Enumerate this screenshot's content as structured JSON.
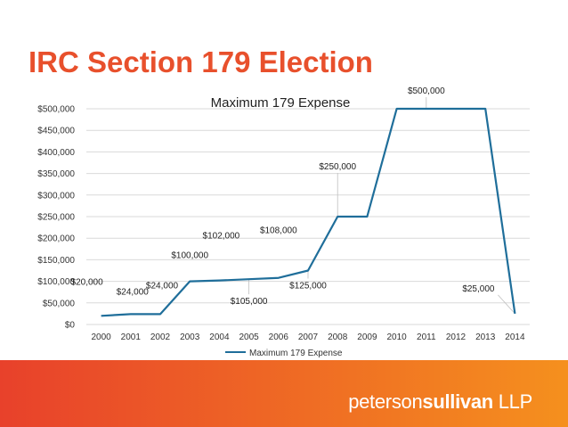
{
  "slide": {
    "title": "IRC Section 179 Election"
  },
  "logo": {
    "part1": "peterson",
    "part2": "sullivan",
    "part3": " LLP"
  },
  "chart_data": {
    "type": "line",
    "title": "Maximum 179 Expense",
    "xlabel": "",
    "ylabel": "",
    "categories": [
      "2000",
      "2001",
      "2002",
      "2003",
      "2004",
      "2005",
      "2006",
      "2007",
      "2008",
      "2009",
      "2010",
      "2011",
      "2012",
      "2013",
      "2014"
    ],
    "series": [
      {
        "name": "Maximum 179 Expense",
        "values": [
          20000,
          24000,
          24000,
          100000,
          102000,
          105000,
          108000,
          125000,
          250000,
          250000,
          500000,
          500000,
          500000,
          500000,
          25000
        ],
        "color": "#1f6e9a"
      }
    ],
    "ylim": [
      0,
      500000
    ],
    "y_ticks": [
      "$0",
      "$50,000",
      "$100,000",
      "$150,000",
      "$200,000",
      "$250,000",
      "$300,000",
      "$350,000",
      "$400,000",
      "$450,000",
      "$500,000"
    ],
    "data_labels": [
      {
        "index": 0,
        "text": "$20,000"
      },
      {
        "index": 1,
        "text": "$24,000"
      },
      {
        "index": 2,
        "text": "$24,000"
      },
      {
        "index": 3,
        "text": "$100,000"
      },
      {
        "index": 4,
        "text": "$102,000"
      },
      {
        "index": 5,
        "text": "$105,000"
      },
      {
        "index": 6,
        "text": "$108,000"
      },
      {
        "index": 7,
        "text": "$125,000"
      },
      {
        "index": 8,
        "text": "$250,000"
      },
      {
        "index": 11,
        "text": "$500,000"
      },
      {
        "index": 14,
        "text": "$25,000"
      }
    ],
    "grid": true,
    "legend": "bottom"
  },
  "colors": {
    "title": "#e8502c",
    "line": "#1f6e9a",
    "gradient_start": "#e8412b",
    "gradient_end": "#f5901e",
    "text": "#222222",
    "gridline": "#d9d9d9"
  }
}
